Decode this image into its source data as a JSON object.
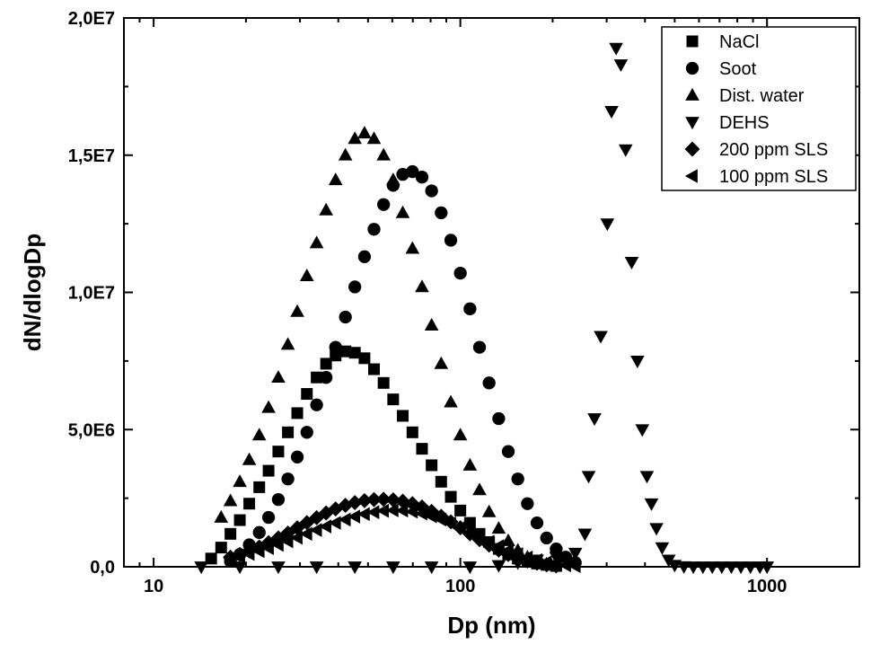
{
  "chart_data": {
    "type": "scatter",
    "xlabel": "Dp (nm)",
    "ylabel": "dN/dlogDp",
    "x_scale": "log",
    "xlim": [
      8,
      2000
    ],
    "ylim": [
      0,
      20000000
    ],
    "x_ticks": [
      10,
      100,
      1000
    ],
    "x_tick_labels": [
      "10",
      "100",
      "1000"
    ],
    "y_ticks": [
      0,
      5000000,
      10000000,
      15000000,
      20000000
    ],
    "y_tick_labels": [
      "0,0",
      "5,0E6",
      "1,0E7",
      "1,5E7",
      "2,0E7"
    ],
    "legend_position": "top-right",
    "series": [
      {
        "name": "NaCl",
        "marker": "square",
        "x": [
          15.4,
          16.6,
          17.8,
          19.1,
          20.5,
          22.1,
          23.7,
          25.5,
          27.4,
          29.4,
          31.6,
          34.0,
          36.5,
          39.2,
          42.2,
          45.3,
          48.7,
          52.3,
          56.2,
          60.4,
          64.9,
          69.8,
          75.0,
          80.6,
          86.6,
          93.1,
          100.0,
          107.5,
          115.5,
          124.1,
          133.4,
          143.3,
          154.0,
          165.5,
          177.8,
          191.1,
          205.4
        ],
        "y": [
          300000,
          700000,
          1200000,
          1700000,
          2300000,
          2900000,
          3500000,
          4200000,
          4900000,
          5600000,
          6300000,
          6900000,
          7400000,
          7700000,
          7850000,
          7800000,
          7600000,
          7200000,
          6700000,
          6100000,
          5500000,
          4900000,
          4300000,
          3700000,
          3100000,
          2550000,
          2050000,
          1600000,
          1200000,
          900000,
          650000,
          450000,
          300000,
          200000,
          120000,
          70000,
          30000
        ]
      },
      {
        "name": "Soot",
        "marker": "circle",
        "x": [
          17.8,
          19.1,
          20.5,
          22.1,
          23.7,
          25.5,
          27.4,
          29.4,
          31.6,
          34.0,
          36.5,
          39.2,
          42.2,
          45.3,
          48.7,
          52.3,
          56.2,
          60.4,
          64.9,
          69.8,
          75.0,
          80.6,
          86.6,
          93.1,
          100.0,
          107.5,
          115.5,
          124.1,
          133.4,
          143.3,
          154.0,
          165.5,
          177.8,
          191.1,
          205.4,
          220.7,
          237.1
        ],
        "y": [
          200000,
          450000,
          800000,
          1250000,
          1800000,
          2450000,
          3200000,
          4000000,
          4900000,
          5900000,
          6900000,
          8000000,
          9100000,
          10200000,
          11300000,
          12300000,
          13200000,
          13900000,
          14300000,
          14400000,
          14200000,
          13700000,
          12900000,
          11900000,
          10700000,
          9400000,
          8000000,
          6700000,
          5400000,
          4200000,
          3200000,
          2300000,
          1600000,
          1050000,
          650000,
          350000,
          150000
        ]
      },
      {
        "name": "Dist. water",
        "marker": "triangle-up",
        "x": [
          16.6,
          17.8,
          19.1,
          20.5,
          22.1,
          23.7,
          25.5,
          27.4,
          29.4,
          31.6,
          34.0,
          36.5,
          39.2,
          42.2,
          45.3,
          48.7,
          52.3,
          56.2,
          60.4,
          64.9,
          69.8,
          75.0,
          80.6,
          86.6,
          93.1,
          100.0,
          107.5,
          115.5,
          124.1,
          133.4,
          143.3,
          154.0,
          165.5,
          177.8,
          191.1
        ],
        "y": [
          1800000,
          2400000,
          3100000,
          3900000,
          4800000,
          5800000,
          6900000,
          8100000,
          9300000,
          10600000,
          11800000,
          13000000,
          14100000,
          15000000,
          15600000,
          15800000,
          15600000,
          15000000,
          14100000,
          12900000,
          11600000,
          10200000,
          8800000,
          7400000,
          6000000,
          4800000,
          3700000,
          2800000,
          2000000,
          1400000,
          950000,
          600000,
          350000,
          200000,
          100000
        ]
      },
      {
        "name": "DEHS",
        "marker": "triangle-down",
        "x": [
          14.3,
          19.1,
          25.5,
          34.0,
          45.3,
          60.4,
          80.6,
          107.5,
          133.4,
          154.0,
          177.8,
          205.4,
          237.1,
          254.8,
          262.0,
          273.8,
          287.0,
          301.5,
          311.2,
          322.0,
          333.8,
          346.0,
          362.0,
          378.0,
          392.0,
          406.0,
          420.0,
          436.0,
          455.0,
          478.0,
          500.0,
          536.0,
          575.0,
          618.0,
          663.0,
          712.0,
          765.0,
          822.0,
          883.0,
          948.0,
          1000.0
        ],
        "y": [
          0,
          0,
          0,
          0,
          0,
          0,
          0,
          0,
          50000,
          150000,
          250000,
          350000,
          500000,
          1200000,
          3300000,
          5400000,
          8400000,
          12500000,
          16600000,
          18900000,
          18300000,
          15200000,
          11100000,
          7500000,
          5000000,
          3300000,
          2300000,
          1400000,
          700000,
          250000,
          60000,
          10000,
          0,
          0,
          0,
          0,
          0,
          0,
          0,
          0,
          0
        ]
      },
      {
        "name": "200 ppm SLS",
        "marker": "diamond",
        "x": [
          17.8,
          19.1,
          20.5,
          22.1,
          23.7,
          25.5,
          27.4,
          29.4,
          31.6,
          34.0,
          36.5,
          39.2,
          42.2,
          45.3,
          48.7,
          52.3,
          56.2,
          60.4,
          64.9,
          69.8,
          75.0,
          80.6,
          86.6,
          93.1,
          100.0,
          107.5,
          115.5,
          124.1,
          133.4,
          143.3,
          154.0,
          165.5,
          177.8,
          191.1,
          205.4
        ],
        "y": [
          350000,
          450000,
          580000,
          720000,
          880000,
          1050000,
          1230000,
          1420000,
          1610000,
          1790000,
          1960000,
          2110000,
          2240000,
          2340000,
          2410000,
          2450000,
          2460000,
          2440000,
          2390000,
          2300000,
          2180000,
          2020000,
          1840000,
          1640000,
          1420000,
          1200000,
          990000,
          790000,
          610000,
          450000,
          320000,
          210000,
          130000,
          70000,
          30000
        ]
      },
      {
        "name": "100 ppm SLS",
        "marker": "triangle-left",
        "x": [
          17.8,
          19.1,
          20.5,
          22.1,
          23.7,
          25.5,
          27.4,
          29.4,
          31.6,
          34.0,
          36.5,
          39.2,
          42.2,
          45.3,
          48.7,
          52.3,
          56.2,
          60.4,
          64.9,
          69.8,
          75.0,
          80.6,
          86.6,
          93.1,
          100.0,
          107.5,
          115.5,
          124.1,
          133.4,
          143.3,
          154.0,
          165.5,
          177.8,
          191.1,
          205.4,
          220.7,
          237.1
        ],
        "y": [
          300000,
          380000,
          470000,
          570000,
          680000,
          800000,
          930000,
          1060000,
          1200000,
          1340000,
          1470000,
          1600000,
          1720000,
          1830000,
          1920000,
          1990000,
          2040000,
          2060000,
          2050000,
          2010000,
          1940000,
          1840000,
          1720000,
          1580000,
          1420000,
          1250000,
          1080000,
          910000,
          750000,
          600000,
          460000,
          340000,
          240000,
          160000,
          100000,
          55000,
          25000
        ]
      }
    ]
  }
}
